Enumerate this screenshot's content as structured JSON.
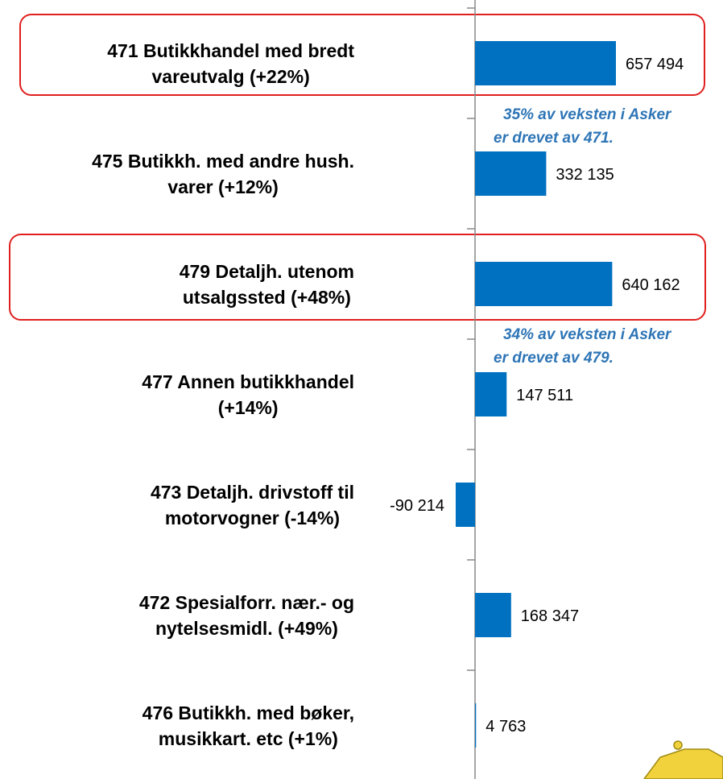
{
  "chart_data": {
    "type": "barh",
    "categories": [
      [
        "471 Butikkhandel med bredt",
        "vareutvalg (+22%)"
      ],
      [
        "475 Butikkh. med andre hush.",
        "varer (+12%)"
      ],
      [
        "479 Detaljh. utenom",
        "utsalgssted (+48%)"
      ],
      [
        "477 Annen butikkhandel",
        "(+14%)"
      ],
      [
        "473 Detaljh. drivstoff til",
        "motorvogner (-14%)"
      ],
      [
        "472 Spesialforr. nær.- og",
        "nytelsesmidl. (+49%)"
      ],
      [
        "476 Butikkh. med bøker,",
        "musikkart. etc (+1%)"
      ]
    ],
    "values": [
      657494,
      332135,
      640162,
      147511,
      -90214,
      168347,
      4763
    ],
    "value_labels": [
      "657 494",
      "332 135",
      "640 162",
      "147 511",
      "-90 214",
      "168 347",
      "4 763"
    ],
    "color": "#0070c0",
    "annotations": [
      [
        "35% av veksten i Asker",
        "er drevet av 471."
      ],
      [
        "34% av veksten i Asker",
        "er drevet av 479."
      ]
    ]
  }
}
